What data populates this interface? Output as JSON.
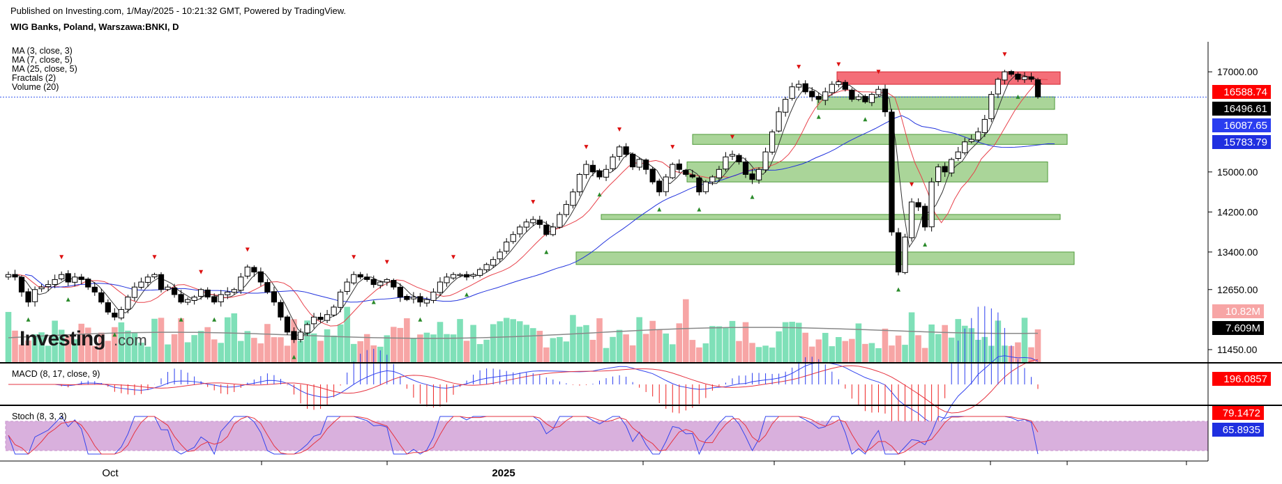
{
  "header": {
    "published": "Published on Investing.com, 1/May/2025 - 10:21:32 GMT, Powered by TradingView.",
    "symbol": "WIG Banks, Poland, Warszawa:BNKI, D"
  },
  "legend": {
    "indicators": [
      "MA (3, close, 3)",
      "MA (7, close, 5)",
      "MA (25, close, 5)",
      "Fractals (2)",
      "Volume (20)"
    ],
    "macd_title": "MACD (8, 17, close, 9)",
    "stoch_title": "Stoch (8, 3, 3)"
  },
  "watermark": {
    "brand": "Investing",
    "suffix": ".com"
  },
  "colors": {
    "up_candle": "#ffffff",
    "down_candle": "#000000",
    "ma3": "#333333",
    "ma7": "#e8414a",
    "ma25": "#2233dd",
    "support_zone": "#7cbf62",
    "resistance_zone": "#f25560",
    "volume_up": "#7fe0b8",
    "volume_down": "#f7a5a5",
    "stoch_band": "#d9b0dd",
    "fractal_up": "#2a8a2a",
    "fractal_down": "#dd1111"
  },
  "chart_data": {
    "type": "candlestick",
    "symbol": "WIG Banks (BNKI), daily",
    "price_axis": {
      "ticks": [
        "17000.00",
        "15000.00",
        "14200.00",
        "13400.00",
        "12650.00",
        "11450.00"
      ],
      "tick_values": [
        17000,
        15000,
        14200,
        13400,
        12650,
        11450
      ],
      "range": [
        11200,
        17600
      ]
    },
    "x_axis": {
      "labels": [
        "Oct",
        "2025"
      ]
    },
    "price_badges": [
      {
        "value": "16588.74",
        "series": "MA (3, close, 3)",
        "bg": "#ff0000",
        "fg": "#ffffff"
      },
      {
        "value": "16496.61",
        "series": "Last close",
        "bg": "#000000",
        "fg": "#ffffff"
      },
      {
        "value": "16087.65",
        "series": "MA (7, close, 5)",
        "bg": "#2a3df0",
        "fg": "#ffffff"
      },
      {
        "value": "15783.79",
        "series": "MA (25, close, 5)",
        "bg": "#1f2fe0",
        "fg": "#ffffff"
      }
    ],
    "volume_badges": [
      {
        "value": "10.82M",
        "bg": "#f7a5a5",
        "fg": "#ffffff"
      },
      {
        "value": "7.609M",
        "bg": "#000000",
        "fg": "#ffffff"
      }
    ],
    "macd_badge": {
      "value": "196.0857",
      "bg": "#ff0000",
      "fg": "#ffffff"
    },
    "stoch_badges": [
      {
        "value": "79.1472",
        "bg": "#ff0000",
        "fg": "#ffffff"
      },
      {
        "value": "65.8935",
        "bg": "#1f2fe0",
        "fg": "#ffffff"
      }
    ],
    "zones": [
      {
        "kind": "resistance",
        "low": 16750,
        "high": 17000
      },
      {
        "kind": "support",
        "low": 16250,
        "high": 16500
      },
      {
        "kind": "support",
        "low": 15550,
        "high": 15750
      },
      {
        "kind": "support",
        "low": 14800,
        "high": 15200
      },
      {
        "kind": "support",
        "low": 14050,
        "high": 14150
      },
      {
        "kind": "support",
        "low": 13150,
        "high": 13400
      }
    ],
    "closes": [
      12950,
      12900,
      12600,
      12400,
      12650,
      12700,
      12750,
      12850,
      12950,
      12800,
      12900,
      12850,
      12700,
      12600,
      12400,
      12200,
      12100,
      12250,
      12500,
      12700,
      12800,
      12900,
      12950,
      12650,
      12700,
      12550,
      12400,
      12450,
      12500,
      12650,
      12500,
      12400,
      12550,
      12600,
      12650,
      12900,
      13100,
      13000,
      12800,
      12600,
      12400,
      12100,
      11800,
      11650,
      11800,
      11950,
      12100,
      12050,
      12150,
      12300,
      12600,
      12800,
      12950,
      12900,
      12850,
      12750,
      12800,
      12850,
      12700,
      12500,
      12450,
      12500,
      12400,
      12450,
      12600,
      12800,
      12900,
      12950,
      12950,
      12900,
      12950,
      13050,
      13150,
      13250,
      13400,
      13600,
      13750,
      13900,
      14000,
      14050,
      13950,
      13750,
      13900,
      14150,
      14350,
      14600,
      14950,
      15150,
      15000,
      14900,
      15050,
      15300,
      15500,
      15350,
      15100,
      15250,
      15050,
      14800,
      14600,
      14900,
      15150,
      15050,
      14950,
      14900,
      14600,
      14800,
      14900,
      15050,
      15300,
      15350,
      15200,
      14950,
      14850,
      15050,
      15400,
      15800,
      16200,
      16450,
      16700,
      16750,
      16600,
      16500,
      16450,
      16600,
      16750,
      16800,
      16650,
      16450,
      16500,
      16400,
      16550,
      16650,
      16200,
      13800,
      13000,
      13700,
      14400,
      14300,
      13900,
      14800,
      15100,
      15000,
      15250,
      15400,
      15600,
      15650,
      15800,
      16050,
      16550,
      16850,
      17000,
      16950,
      16850,
      16900,
      16850,
      16500
    ],
    "volume_avg_axis": [
      7.609,
      10.82
    ]
  }
}
